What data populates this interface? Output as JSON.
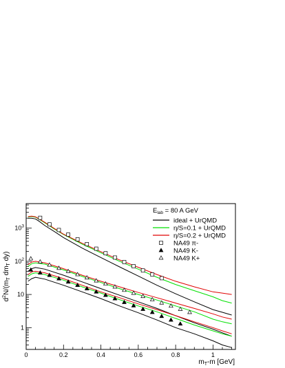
{
  "chart_data": {
    "type": "line",
    "title": "",
    "xlabel": "m_T-m [GeV]",
    "xlabel_main": "m",
    "xlabel_sub": "T",
    "xlabel_rest": "-m [GeV]",
    "ylabel": "d²N/(m_T dm_T dy)",
    "ylabel_parts": [
      "d",
      "2",
      "N/(m",
      "T",
      " dm",
      "T",
      " dy)"
    ],
    "x_range": [
      0,
      1.12
    ],
    "y_range": [
      0.22,
      5500
    ],
    "y_scale": "log",
    "grid": false,
    "legend_position": "top-right",
    "x_ticks": [
      {
        "value": 0,
        "label": "0"
      },
      {
        "value": 0.2,
        "label": "0.2"
      },
      {
        "value": 0.4,
        "label": "0.4"
      },
      {
        "value": 0.6,
        "label": "0.6"
      },
      {
        "value": 0.8,
        "label": "0.8"
      },
      {
        "value": 1.0,
        "label": "1"
      }
    ],
    "y_ticks": [
      {
        "value": 1,
        "label": "1"
      },
      {
        "value": 10,
        "label": "10"
      },
      {
        "value": 100,
        "label": "10",
        "exp": "2"
      },
      {
        "value": 1000,
        "label": "10",
        "exp": "3"
      }
    ],
    "legend_header": {
      "main": "E",
      "sub": "lab",
      "rest": " = 80 A GeV"
    },
    "legend": [
      {
        "label": "ideal + UrQMD",
        "kind": "line",
        "color": "#000000"
      },
      {
        "label": "η/S=0.1 + UrQMD",
        "kind": "line",
        "color": "#00e000"
      },
      {
        "label": "η/S=0.2 + UrQMD",
        "kind": "line",
        "color": "#e00000"
      },
      {
        "label": "NA49 π-",
        "kind": "marker",
        "marker": "open-square"
      },
      {
        "label": "NA49 K-",
        "kind": "marker",
        "marker": "filled-triangle"
      },
      {
        "label": "NA49 K+",
        "kind": "marker",
        "marker": "open-triangle"
      }
    ],
    "series": [
      {
        "name": "ideal + UrQMD",
        "group": "pion",
        "color": "#000000",
        "x": [
          0.01,
          0.03,
          0.05,
          0.07,
          0.1,
          0.15,
          0.2,
          0.3,
          0.4,
          0.5,
          0.6,
          0.7,
          0.8,
          0.9,
          1.0,
          1.05,
          1.1
        ],
        "y": [
          2000,
          2000,
          1900,
          1600,
          1200,
          800,
          520,
          250,
          130,
          68,
          36,
          19,
          10.5,
          6.0,
          3.5,
          2.9,
          2.4
        ]
      },
      {
        "name": "η/S=0.1 + UrQMD",
        "group": "pion",
        "color": "#00e000",
        "x": [
          0.01,
          0.03,
          0.05,
          0.07,
          0.1,
          0.15,
          0.2,
          0.3,
          0.4,
          0.5,
          0.6,
          0.7,
          0.8,
          0.9,
          1.0,
          1.05,
          1.1
        ],
        "y": [
          2200,
          2250,
          2150,
          1850,
          1450,
          950,
          640,
          330,
          180,
          100,
          58,
          33,
          20,
          13,
          8.5,
          6.5,
          5.5
        ]
      },
      {
        "name": "η/S=0.2 + UrQMD",
        "group": "pion",
        "color": "#e00000",
        "x": [
          0.01,
          0.03,
          0.05,
          0.07,
          0.1,
          0.15,
          0.2,
          0.3,
          0.4,
          0.5,
          0.6,
          0.7,
          0.8,
          0.9,
          1.0,
          1.05,
          1.1
        ],
        "y": [
          2250,
          2300,
          2200,
          1900,
          1500,
          980,
          660,
          350,
          195,
          110,
          66,
          40,
          25,
          17,
          12,
          11,
          10
        ]
      },
      {
        "name": "ideal + UrQMD",
        "group": "kplus",
        "color": "#000000",
        "x": [
          0.01,
          0.03,
          0.05,
          0.1,
          0.2,
          0.3,
          0.4,
          0.5,
          0.6,
          0.7,
          0.8,
          0.9,
          1.0,
          1.05,
          1.1
        ],
        "y": [
          50,
          60,
          65,
          58,
          38,
          24,
          15,
          9.5,
          6,
          3.8,
          2.3,
          1.4,
          0.9,
          0.7,
          0.55
        ]
      },
      {
        "name": "η/S=0.1 + UrQMD",
        "group": "kplus",
        "color": "#00e000",
        "x": [
          0.01,
          0.03,
          0.05,
          0.1,
          0.2,
          0.3,
          0.4,
          0.5,
          0.6,
          0.7,
          0.8,
          0.9,
          1.0,
          1.05,
          1.1
        ],
        "y": [
          70,
          85,
          90,
          82,
          55,
          35,
          23,
          15,
          10,
          6.8,
          4.5,
          3.0,
          1.8,
          1.5,
          1.3
        ]
      },
      {
        "name": "η/S=0.2 + UrQMD",
        "group": "kplus",
        "color": "#e00000",
        "x": [
          0.01,
          0.03,
          0.05,
          0.1,
          0.2,
          0.3,
          0.4,
          0.5,
          0.6,
          0.7,
          0.8,
          0.9,
          1.0,
          1.05,
          1.1
        ],
        "y": [
          80,
          95,
          100,
          90,
          60,
          38,
          25,
          17,
          11.5,
          8,
          5.5,
          3.8,
          2.6,
          2.1,
          1.8
        ]
      },
      {
        "name": "ideal + UrQMD",
        "group": "kminus",
        "color": "#000000",
        "x": [
          0.01,
          0.03,
          0.05,
          0.1,
          0.2,
          0.3,
          0.4,
          0.5,
          0.6,
          0.7,
          0.8,
          0.9,
          1.0,
          1.05,
          1.1
        ],
        "y": [
          25,
          30,
          33,
          29,
          19,
          12,
          7.5,
          4.5,
          2.8,
          1.7,
          1.0,
          0.65,
          0.4,
          0.3,
          0.25
        ]
      },
      {
        "name": "η/S=0.1 + UrQMD",
        "group": "kminus",
        "color": "#00e000",
        "x": [
          0.01,
          0.03,
          0.05,
          0.1,
          0.2,
          0.3,
          0.4,
          0.5,
          0.6,
          0.7,
          0.8,
          0.9,
          1.0,
          1.05,
          1.1
        ],
        "y": [
          35,
          42,
          45,
          40,
          27,
          17,
          11,
          7,
          4.5,
          3,
          1.9,
          1.2,
          0.8,
          0.65,
          0.55
        ]
      },
      {
        "name": "η/S=0.2 + UrQMD",
        "group": "kminus",
        "color": "#e00000",
        "x": [
          0.01,
          0.03,
          0.05,
          0.1,
          0.2,
          0.3,
          0.4,
          0.5,
          0.6,
          0.7,
          0.8,
          0.9,
          1.0,
          1.05,
          1.1
        ],
        "y": [
          40,
          48,
          50,
          45,
          30,
          19,
          12,
          8,
          5.2,
          3.5,
          2.3,
          1.5,
          1.0,
          0.8,
          0.65
        ]
      }
    ],
    "data_points": [
      {
        "name": "NA49 π-",
        "marker": "open-square",
        "x": [
          0.075,
          0.125,
          0.175,
          0.225,
          0.275,
          0.325,
          0.375,
          0.425,
          0.475,
          0.525,
          0.575,
          0.625,
          0.675,
          0.725
        ],
        "y": [
          2050,
          1300,
          880,
          640,
          460,
          330,
          240,
          175,
          130,
          95,
          71,
          53,
          40,
          31
        ]
      },
      {
        "name": "NA49 K-",
        "marker": "filled-triangle",
        "x": [
          0.025,
          0.075,
          0.125,
          0.175,
          0.225,
          0.275,
          0.325,
          0.375,
          0.425,
          0.475,
          0.525,
          0.575,
          0.625,
          0.675,
          0.725,
          0.775,
          0.825
        ],
        "y": [
          55,
          45,
          38,
          30,
          24,
          19,
          15,
          12,
          9.5,
          7.5,
          5.8,
          4.6,
          3.6,
          2.9,
          2.2,
          1.7,
          1.3
        ]
      },
      {
        "name": "NA49 K+",
        "marker": "open-triangle",
        "x": [
          0.025,
          0.075,
          0.125,
          0.175,
          0.225,
          0.275,
          0.325,
          0.375,
          0.425,
          0.475,
          0.525,
          0.575,
          0.625,
          0.675,
          0.725,
          0.775,
          0.825,
          0.875
        ],
        "y": [
          120,
          97,
          78,
          62,
          50,
          40,
          32,
          26,
          21,
          17,
          13.5,
          11,
          8.8,
          7,
          5.6,
          4.5,
          3.6,
          2.9
        ]
      }
    ]
  }
}
